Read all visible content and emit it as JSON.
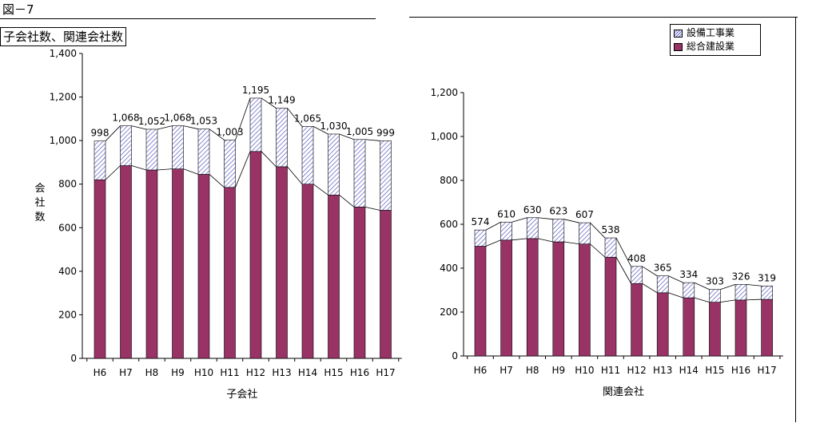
{
  "figure_label": "図－7",
  "figure_title": "子会社数、関連会社数",
  "legend": [
    {
      "name": "設備工事業",
      "pattern": "hatch",
      "color": "#6b6bc9"
    },
    {
      "name": "総合建設業",
      "pattern": "solid",
      "color": "#993366"
    }
  ],
  "chart_data": [
    {
      "type": "bar",
      "stacked": true,
      "xlabel": "子会社",
      "ylabel": "会社数",
      "ylim": [
        0,
        1400
      ],
      "yticks": [
        0,
        200,
        400,
        600,
        800,
        1000,
        1200,
        1400
      ],
      "ytick_labels": [
        "0",
        "200",
        "400",
        "600",
        "800",
        "1,000",
        "1,200",
        "1,400"
      ],
      "categories": [
        "H6",
        "H7",
        "H8",
        "H9",
        "H10",
        "H11",
        "H12",
        "H13",
        "H14",
        "H15",
        "H16",
        "H17"
      ],
      "series": [
        {
          "name": "総合建設業",
          "values": [
            820,
            885,
            865,
            870,
            845,
            785,
            950,
            880,
            800,
            750,
            695,
            680
          ]
        },
        {
          "name": "設備工事業",
          "values": [
            178,
            183,
            187,
            198,
            208,
            218,
            245,
            269,
            265,
            280,
            310,
            319
          ]
        }
      ],
      "totals": [
        998,
        1068,
        1052,
        1068,
        1053,
        1003,
        1195,
        1149,
        1065,
        1030,
        1005,
        999
      ],
      "total_labels": [
        "998",
        "1,068",
        "1,052",
        "1,068",
        "1,053",
        "1,003",
        "1,195",
        "1,149",
        "1,065",
        "1,030",
        "1,005",
        "999"
      ]
    },
    {
      "type": "bar",
      "stacked": true,
      "xlabel": "関連会社",
      "ylabel": "",
      "ylim": [
        0,
        1200
      ],
      "yticks": [
        0,
        200,
        400,
        600,
        800,
        1000,
        1200
      ],
      "ytick_labels": [
        "0",
        "200",
        "400",
        "600",
        "800",
        "1,000",
        "1,200"
      ],
      "categories": [
        "H6",
        "H7",
        "H8",
        "H9",
        "H10",
        "H11",
        "H12",
        "H13",
        "H14",
        "H15",
        "H16",
        "H17"
      ],
      "series": [
        {
          "name": "総合建設業",
          "values": [
            500,
            528,
            535,
            520,
            510,
            450,
            330,
            288,
            265,
            245,
            255,
            258
          ]
        },
        {
          "name": "設備工事業",
          "values": [
            74,
            82,
            95,
            103,
            97,
            88,
            78,
            77,
            69,
            58,
            71,
            61
          ]
        }
      ],
      "totals": [
        574,
        610,
        630,
        623,
        607,
        538,
        408,
        365,
        334,
        303,
        326,
        319
      ],
      "total_labels": [
        "574",
        "610",
        "630",
        "623",
        "607",
        "538",
        "408",
        "365",
        "334",
        "303",
        "326",
        "319"
      ]
    }
  ]
}
